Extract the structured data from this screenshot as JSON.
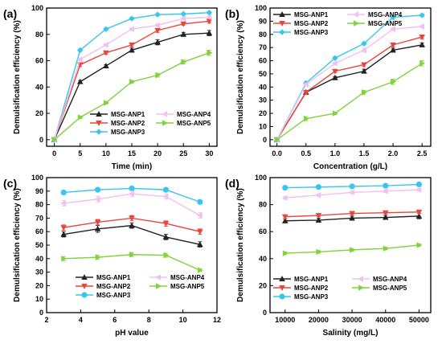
{
  "colors": {
    "ANP1": "#222222",
    "ANP2": "#e8453c",
    "ANP3": "#37c6ee",
    "ANP4": "#f0c0f0",
    "ANP5": "#7fd33b"
  },
  "chart_data": [
    {
      "id": "a",
      "tag": "(a)",
      "type": "line",
      "xlabel": "Time (min)",
      "ylabel": "Demulsification efficiency (%)",
      "x": [
        0,
        5,
        10,
        15,
        20,
        25,
        30
      ],
      "xticks": [
        "0",
        "5",
        "10",
        "15",
        "20",
        "25",
        "30"
      ],
      "xlim": [
        -1.5,
        31.5
      ],
      "ylim": [
        -5,
        100
      ],
      "yticks": [
        "0",
        "20",
        "40",
        "60",
        "80",
        "100"
      ],
      "legend_position": "bottom-right",
      "series": [
        {
          "name": "MSG-ANP1",
          "key": "ANP1",
          "marker": "triangle-up",
          "values": [
            0,
            44,
            56,
            68,
            74,
            80,
            81
          ],
          "err": [
            0,
            1,
            1,
            1.5,
            2,
            1.5,
            2
          ]
        },
        {
          "name": "MSG-ANP2",
          "key": "ANP2",
          "marker": "triangle-down",
          "values": [
            0,
            57,
            66,
            72,
            83,
            88,
            90
          ],
          "err": [
            0,
            1.5,
            1,
            1.5,
            1.5,
            1,
            1.5
          ]
        },
        {
          "name": "MSG-ANP3",
          "key": "ANP3",
          "marker": "diamond",
          "values": [
            0,
            68,
            84,
            92,
            95,
            95.5,
            96.5
          ],
          "err": [
            0,
            1,
            1,
            1,
            0.8,
            0.8,
            0.8
          ]
        },
        {
          "name": "MSG-ANP4",
          "key": "ANP4",
          "marker": "triangle-left",
          "values": [
            0,
            61,
            72,
            84,
            87,
            92,
            93
          ],
          "err": [
            0,
            1,
            1,
            1,
            1,
            1,
            1
          ]
        },
        {
          "name": "MSG-ANP5",
          "key": "ANP5",
          "marker": "triangle-right",
          "values": [
            0,
            17,
            28,
            44,
            49,
            59,
            66
          ],
          "err": [
            0,
            1,
            1,
            1,
            1.5,
            1.5,
            2
          ]
        }
      ]
    },
    {
      "id": "b",
      "tag": "(b)",
      "type": "line",
      "xlabel": "Concentration (g/L)",
      "ylabel": "Demulsification efficiency (%)",
      "x": [
        0,
        0.5,
        1.0,
        1.5,
        2.0,
        2.5
      ],
      "xticks": [
        "0.0",
        "0.5",
        "1.0",
        "1.5",
        "2.0",
        "2.5"
      ],
      "xlim": [
        -0.12,
        2.65
      ],
      "ylim": [
        -5,
        100
      ],
      "yticks": [
        "0",
        "10",
        "20",
        "30",
        "40",
        "50",
        "60",
        "70",
        "80",
        "90",
        "100"
      ],
      "legend_position": "top-left",
      "series": [
        {
          "name": "MSG-ANP1",
          "key": "ANP1",
          "marker": "triangle-up",
          "values": [
            0,
            36,
            47,
            52,
            68,
            72
          ],
          "err": [
            0,
            1,
            1,
            1.5,
            1.5,
            1.5
          ]
        },
        {
          "name": "MSG-ANP2",
          "key": "ANP2",
          "marker": "triangle-down",
          "values": [
            0,
            36,
            52,
            57,
            72,
            78
          ],
          "err": [
            0,
            1,
            1,
            1.5,
            1.5,
            1.5
          ]
        },
        {
          "name": "MSG-ANP3",
          "key": "ANP3",
          "marker": "diamond",
          "values": [
            0,
            43,
            62,
            73,
            93,
            94.5
          ],
          "err": [
            0,
            1,
            1,
            1,
            1,
            1
          ]
        },
        {
          "name": "MSG-ANP4",
          "key": "ANP4",
          "marker": "triangle-left",
          "values": [
            0,
            42,
            58,
            68,
            84,
            86
          ],
          "err": [
            0,
            1,
            1,
            1.5,
            1,
            1
          ]
        },
        {
          "name": "MSG-ANP5",
          "key": "ANP5",
          "marker": "triangle-right",
          "values": [
            0,
            16,
            20,
            36,
            44,
            58
          ],
          "err": [
            0,
            1.5,
            1,
            1.5,
            2,
            2
          ]
        }
      ]
    },
    {
      "id": "c",
      "tag": "(c)",
      "type": "line",
      "xlabel": "pH value",
      "ylabel": "Demulsification efficiency (%)",
      "x": [
        3,
        5,
        7,
        9,
        11
      ],
      "xticks": [
        "2",
        "4",
        "6",
        "8",
        "10",
        "12"
      ],
      "xtick_values": [
        2,
        4,
        6,
        8,
        10,
        12
      ],
      "xlim": [
        2,
        12
      ],
      "ylim": [
        0,
        100
      ],
      "yticks": [
        "0",
        "10",
        "20",
        "30",
        "40",
        "50",
        "60",
        "70",
        "80",
        "90",
        "100"
      ],
      "legend_position": "bottom-left",
      "series": [
        {
          "name": "MSG-ANP1",
          "key": "ANP1",
          "marker": "triangle-up",
          "values": [
            58,
            62,
            64.5,
            56,
            50.5
          ],
          "err": [
            2,
            2.5,
            2,
            2,
            2
          ]
        },
        {
          "name": "MSG-ANP2",
          "key": "ANP2",
          "marker": "triangle-down",
          "values": [
            63,
            67,
            70,
            66,
            60
          ],
          "err": [
            2,
            2,
            2,
            2,
            2
          ]
        },
        {
          "name": "MSG-ANP3",
          "key": "ANP3",
          "marker": "circle",
          "values": [
            89,
            91,
            92,
            91,
            82
          ],
          "err": [
            1.5,
            1.5,
            1.5,
            1.5,
            1.5
          ]
        },
        {
          "name": "MSG-ANP4",
          "key": "ANP4",
          "marker": "triangle-left",
          "values": [
            81,
            84,
            88,
            86,
            72
          ],
          "err": [
            2,
            2,
            2,
            2,
            2
          ]
        },
        {
          "name": "MSG-ANP5",
          "key": "ANP5",
          "marker": "triangle-right",
          "values": [
            40,
            41,
            43,
            42.5,
            31.5
          ],
          "err": [
            1.5,
            1.5,
            1.5,
            1.5,
            1
          ]
        }
      ]
    },
    {
      "id": "d",
      "tag": "(d)",
      "type": "line",
      "xlabel": "Salinity (mg/L)",
      "ylabel": "Demulsification efficiency (%)",
      "x": [
        10000,
        20000,
        30000,
        40000,
        50000
      ],
      "xticks": [
        "10000",
        "20000",
        "30000",
        "40000",
        "50000"
      ],
      "xlim": [
        5500,
        53500
      ],
      "ylim": [
        0,
        100
      ],
      "yticks": [
        "0",
        "20",
        "40",
        "60",
        "80",
        "100"
      ],
      "legend_position": "bottom-left",
      "series": [
        {
          "name": "MSG-ANP1",
          "key": "ANP1",
          "marker": "triangle-up",
          "values": [
            68,
            68.5,
            70,
            70.5,
            71.5
          ],
          "err": [
            1.5,
            1.5,
            1.5,
            1.5,
            2
          ]
        },
        {
          "name": "MSG-ANP2",
          "key": "ANP2",
          "marker": "triangle-down",
          "values": [
            71,
            72,
            73.5,
            74,
            74.5
          ],
          "err": [
            1.5,
            1,
            1,
            1,
            1
          ]
        },
        {
          "name": "MSG-ANP3",
          "key": "ANP3",
          "marker": "circle",
          "values": [
            92.5,
            93,
            93.5,
            94,
            95
          ],
          "err": [
            1,
            1,
            1,
            1,
            1
          ]
        },
        {
          "name": "MSG-ANP4",
          "key": "ANP4",
          "marker": "triangle-left",
          "values": [
            85,
            87,
            89,
            90,
            91
          ],
          "err": [
            1,
            1,
            1,
            1,
            1
          ]
        },
        {
          "name": "MSG-ANP5",
          "key": "ANP5",
          "marker": "triangle-right",
          "values": [
            44,
            45,
            46.5,
            47.5,
            50
          ],
          "err": [
            1,
            1,
            1,
            1,
            1
          ]
        }
      ]
    }
  ]
}
